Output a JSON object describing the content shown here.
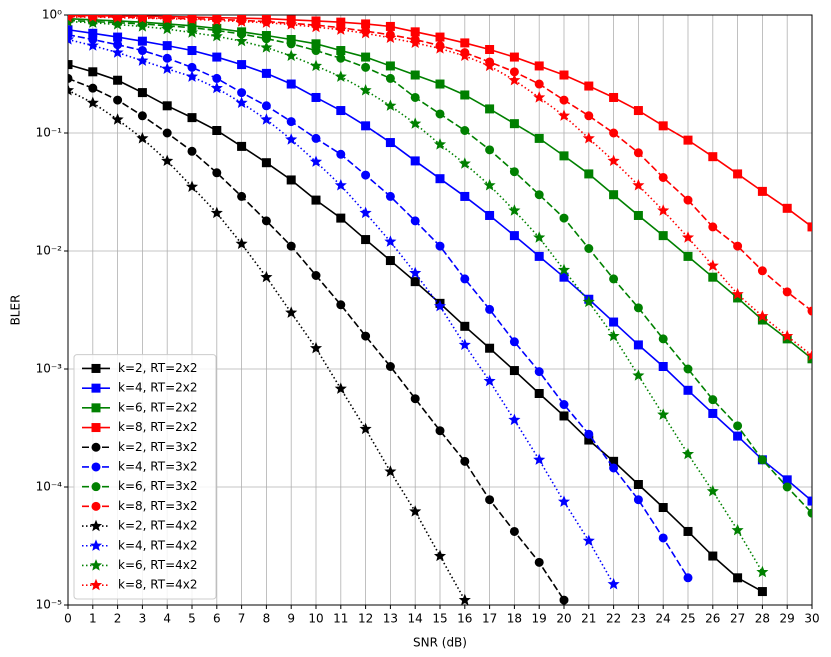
{
  "chart_data": {
    "type": "line",
    "xlabel": "SNR (dB)",
    "ylabel": "BLER",
    "log_y": true,
    "grid": true,
    "legend": "lower left",
    "x": [
      0,
      1,
      2,
      3,
      4,
      5,
      6,
      7,
      8,
      9,
      10,
      11,
      12,
      13,
      14,
      15,
      16,
      17,
      18,
      19,
      20,
      21,
      22,
      23,
      24,
      25,
      26,
      27,
      28,
      29,
      30
    ],
    "xlim": [
      0,
      30
    ],
    "xticks": [
      0,
      1,
      2,
      3,
      4,
      5,
      6,
      7,
      8,
      9,
      10,
      11,
      12,
      13,
      14,
      15,
      16,
      17,
      18,
      19,
      20,
      21,
      22,
      23,
      24,
      25,
      26,
      27,
      28,
      29,
      30
    ],
    "ylim": [
      1e-05,
      1
    ],
    "yticks": [
      {
        "value": 1e-05,
        "label": "10⁻⁵"
      },
      {
        "value": 0.0001,
        "label": "10⁻⁴"
      },
      {
        "value": 0.001,
        "label": "10⁻³"
      },
      {
        "value": 0.01,
        "label": "10⁻²"
      },
      {
        "value": 0.1,
        "label": "10⁻¹"
      },
      {
        "value": 1,
        "label": "10⁰"
      }
    ],
    "series": [
      {
        "name": "k=2, RT=2x2",
        "color": "#000000",
        "linestyle": "solid",
        "marker": "square",
        "values": [
          0.38,
          0.33,
          0.28,
          0.22,
          0.17,
          0.135,
          0.105,
          0.077,
          0.056,
          0.04,
          0.027,
          0.019,
          0.0125,
          0.0083,
          0.0055,
          0.0036,
          0.0023,
          0.0015,
          0.00097,
          0.00062,
          0.0004,
          0.00025,
          0.000165,
          0.000105,
          6.7e-05,
          4.2e-05,
          2.6e-05,
          1.7e-05,
          1.3e-05,
          null,
          null
        ]
      },
      {
        "name": "k=4, RT=2x2",
        "color": "#0000ff",
        "linestyle": "solid",
        "marker": "square",
        "values": [
          0.75,
          0.7,
          0.65,
          0.6,
          0.55,
          0.5,
          0.44,
          0.38,
          0.32,
          0.26,
          0.2,
          0.155,
          0.115,
          0.083,
          0.058,
          0.041,
          0.029,
          0.02,
          0.0135,
          0.009,
          0.006,
          0.0039,
          0.0025,
          0.0016,
          0.00105,
          0.00066,
          0.00042,
          0.00027,
          0.00017,
          0.000115,
          7.6e-05
        ]
      },
      {
        "name": "k=6, RT=2x2",
        "color": "#008000",
        "linestyle": "solid",
        "marker": "square",
        "values": [
          0.93,
          0.91,
          0.89,
          0.87,
          0.84,
          0.81,
          0.77,
          0.72,
          0.67,
          0.62,
          0.57,
          0.5,
          0.44,
          0.37,
          0.31,
          0.26,
          0.21,
          0.16,
          0.12,
          0.09,
          0.064,
          0.045,
          0.03,
          0.02,
          0.0135,
          0.009,
          0.006,
          0.004,
          0.0026,
          0.0018,
          0.00122
        ]
      },
      {
        "name": "k=8, RT=2x2",
        "color": "#ff0000",
        "linestyle": "solid",
        "marker": "square",
        "values": [
          0.99,
          0.99,
          0.98,
          0.98,
          0.97,
          0.96,
          0.95,
          0.94,
          0.93,
          0.91,
          0.89,
          0.87,
          0.84,
          0.8,
          0.72,
          0.65,
          0.58,
          0.51,
          0.44,
          0.37,
          0.31,
          0.25,
          0.2,
          0.155,
          0.115,
          0.087,
          0.063,
          0.045,
          0.032,
          0.023,
          0.016
        ]
      },
      {
        "name": "k=2, RT=3x2",
        "color": "#000000",
        "linestyle": "dashed",
        "marker": "circle",
        "values": [
          0.29,
          0.24,
          0.19,
          0.14,
          0.1,
          0.07,
          0.046,
          0.029,
          0.018,
          0.011,
          0.0062,
          0.0035,
          0.0019,
          0.00105,
          0.00056,
          0.0003,
          0.000165,
          7.8e-05,
          4.2e-05,
          2.3e-05,
          1.1e-05,
          null,
          null,
          null,
          null,
          null,
          null,
          null,
          null,
          null,
          null
        ]
      },
      {
        "name": "k=4, RT=3x2",
        "color": "#0000ff",
        "linestyle": "dashed",
        "marker": "circle",
        "values": [
          0.68,
          0.62,
          0.56,
          0.5,
          0.43,
          0.36,
          0.29,
          0.22,
          0.17,
          0.125,
          0.09,
          0.066,
          0.044,
          0.029,
          0.018,
          0.011,
          0.0058,
          0.0032,
          0.0017,
          0.00095,
          0.0005,
          0.00028,
          0.000145,
          7.8e-05,
          3.7e-05,
          1.7e-05,
          null,
          null,
          null,
          null,
          null
        ]
      },
      {
        "name": "k=6, RT=3x2",
        "color": "#008000",
        "linestyle": "dashed",
        "marker": "circle",
        "values": [
          0.9,
          0.88,
          0.86,
          0.84,
          0.81,
          0.78,
          0.74,
          0.69,
          0.63,
          0.57,
          0.5,
          0.43,
          0.36,
          0.29,
          0.2,
          0.145,
          0.105,
          0.072,
          0.047,
          0.03,
          0.019,
          0.0105,
          0.0058,
          0.0033,
          0.0018,
          0.001,
          0.00055,
          0.00033,
          0.00017,
          0.0001,
          6e-05
        ]
      },
      {
        "name": "k=8, RT=3x2",
        "color": "#ff0000",
        "linestyle": "dashed",
        "marker": "circle",
        "values": [
          0.97,
          0.97,
          0.96,
          0.95,
          0.94,
          0.93,
          0.92,
          0.9,
          0.88,
          0.85,
          0.82,
          0.78,
          0.73,
          0.68,
          0.62,
          0.55,
          0.48,
          0.4,
          0.33,
          0.26,
          0.19,
          0.14,
          0.1,
          0.068,
          0.042,
          0.027,
          0.016,
          0.011,
          0.0068,
          0.0045,
          0.0031
        ]
      },
      {
        "name": "k=2, RT=4x2",
        "color": "#000000",
        "linestyle": "dotted",
        "marker": "star",
        "values": [
          0.23,
          0.18,
          0.13,
          0.09,
          0.058,
          0.035,
          0.021,
          0.0115,
          0.006,
          0.003,
          0.0015,
          0.00068,
          0.00031,
          0.000135,
          6.2e-05,
          2.6e-05,
          1.1e-05,
          null,
          null,
          null,
          null,
          null,
          null,
          null,
          null,
          null,
          null,
          null,
          null,
          null,
          null
        ]
      },
      {
        "name": "k=4, RT=4x2",
        "color": "#0000ff",
        "linestyle": "dotted",
        "marker": "star",
        "values": [
          0.62,
          0.55,
          0.48,
          0.41,
          0.35,
          0.3,
          0.24,
          0.18,
          0.13,
          0.088,
          0.057,
          0.036,
          0.021,
          0.012,
          0.0065,
          0.0034,
          0.0016,
          0.00079,
          0.00037,
          0.00017,
          7.5e-05,
          3.5e-05,
          1.5e-05,
          null,
          null,
          null,
          null,
          null,
          null,
          null,
          null
        ]
      },
      {
        "name": "k=6, RT=4x2",
        "color": "#008000",
        "linestyle": "dotted",
        "marker": "star",
        "values": [
          0.88,
          0.86,
          0.83,
          0.8,
          0.76,
          0.71,
          0.66,
          0.6,
          0.53,
          0.45,
          0.37,
          0.3,
          0.23,
          0.17,
          0.12,
          0.08,
          0.055,
          0.036,
          0.022,
          0.013,
          0.0069,
          0.0037,
          0.0019,
          0.00088,
          0.00041,
          0.00019,
          9.2e-05,
          4.3e-05,
          1.9e-05,
          null,
          null
        ]
      },
      {
        "name": "k=8, RT=4x2",
        "color": "#ff0000",
        "linestyle": "dotted",
        "marker": "star",
        "values": [
          0.96,
          0.96,
          0.95,
          0.94,
          0.93,
          0.92,
          0.9,
          0.88,
          0.86,
          0.83,
          0.79,
          0.75,
          0.7,
          0.64,
          0.58,
          0.52,
          0.45,
          0.37,
          0.28,
          0.2,
          0.14,
          0.09,
          0.058,
          0.036,
          0.022,
          0.013,
          0.0075,
          0.0043,
          0.0028,
          0.0019,
          0.0013
        ]
      }
    ]
  }
}
